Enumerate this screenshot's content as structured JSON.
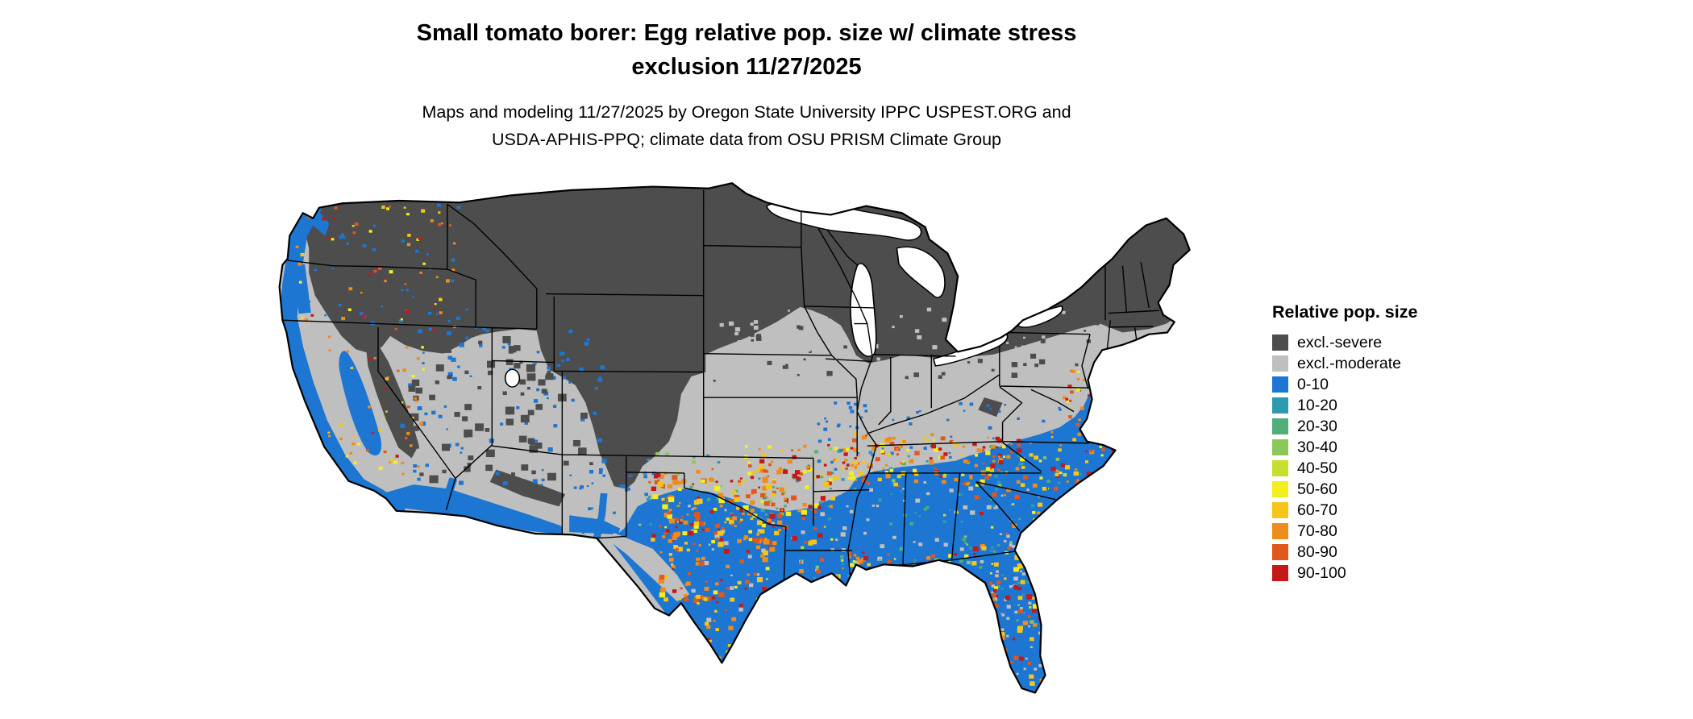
{
  "title": {
    "line1": "Small tomato borer: Egg relative pop. size w/ climate stress",
    "line2": "exclusion 11/27/2025"
  },
  "subtitle": {
    "line1": "Maps and modeling 11/27/2025 by Oregon State University IPPC USPEST.ORG and",
    "line2": "USDA-APHIS-PPQ; climate data from OSU PRISM Climate Group"
  },
  "map": {
    "name": "Contiguous United States relative population size model map"
  },
  "legend": {
    "title": "Relative pop. size",
    "items": [
      {
        "label": "excl.-severe",
        "color": "#4d4d4d"
      },
      {
        "label": "excl.-moderate",
        "color": "#bfbfbf"
      },
      {
        "label": "0-10",
        "color": "#1d76d2"
      },
      {
        "label": "10-20",
        "color": "#2e9ab0"
      },
      {
        "label": "20-30",
        "color": "#4fae79"
      },
      {
        "label": "30-40",
        "color": "#8cc75a"
      },
      {
        "label": "40-50",
        "color": "#c6df2e"
      },
      {
        "label": "50-60",
        "color": "#f2ee1f"
      },
      {
        "label": "60-70",
        "color": "#f6c51c"
      },
      {
        "label": "70-80",
        "color": "#ef8c1b"
      },
      {
        "label": "80-90",
        "color": "#e2571b"
      },
      {
        "label": "90-100",
        "color": "#c41917"
      }
    ]
  }
}
